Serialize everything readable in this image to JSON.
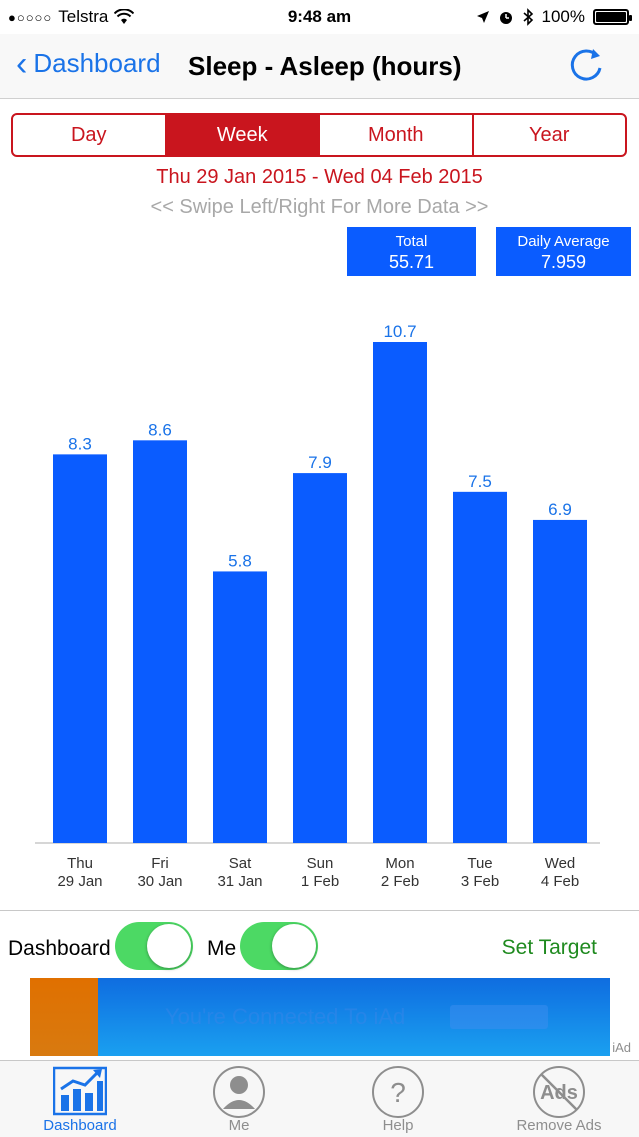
{
  "status_bar": {
    "carrier": "Telstra",
    "signal_dots": "●○○○○",
    "time": "9:48 am",
    "battery": "100%"
  },
  "nav": {
    "back_label": "Dashboard",
    "title": "Sleep - Asleep (hours)"
  },
  "segments": [
    "Day",
    "Week",
    "Month",
    "Year"
  ],
  "selected_segment": "Week",
  "date_range": "Thu 29 Jan 2015 - Wed 04 Feb 2015",
  "swipe_hint": "<< Swipe Left/Right For More Data >>",
  "stats": {
    "total_label": "Total",
    "total_value": "55.71",
    "avg_label": "Daily Average",
    "avg_value": "7.959"
  },
  "colors": {
    "bar": "#0a5cff",
    "label": "#1a73e8",
    "accent": "#c9151e",
    "toggle_on": "#4cd964"
  },
  "chart_data": {
    "type": "bar",
    "categories": [
      [
        "Thu",
        "29 Jan"
      ],
      [
        "Fri",
        "30 Jan"
      ],
      [
        "Sat",
        "31 Jan"
      ],
      [
        "Sun",
        "1 Feb"
      ],
      [
        "Mon",
        "2 Feb"
      ],
      [
        "Tue",
        "3 Feb"
      ],
      [
        "Wed",
        "4 Feb"
      ]
    ],
    "values": [
      8.3,
      8.6,
      5.8,
      7.9,
      10.7,
      7.5,
      6.9
    ],
    "value_labels": [
      "8.3",
      "8.6",
      "5.8",
      "7.9",
      "10.7",
      "7.5",
      "6.9"
    ],
    "ylim": [
      0,
      10.7
    ]
  },
  "controls": {
    "dashboard_label": "Dashboard",
    "dashboard_on": true,
    "me_label": "Me",
    "me_on": true,
    "set_target": "Set Target"
  },
  "ad": {
    "text": "You're Connected To iAd",
    "badge": "iAd"
  },
  "tabs": [
    {
      "label": "Dashboard",
      "icon": "bar-chart-icon"
    },
    {
      "label": "Me",
      "icon": "person-icon"
    },
    {
      "label": "Help",
      "icon": "question-icon"
    },
    {
      "label": "Remove Ads",
      "icon": "no-ads-icon"
    }
  ]
}
